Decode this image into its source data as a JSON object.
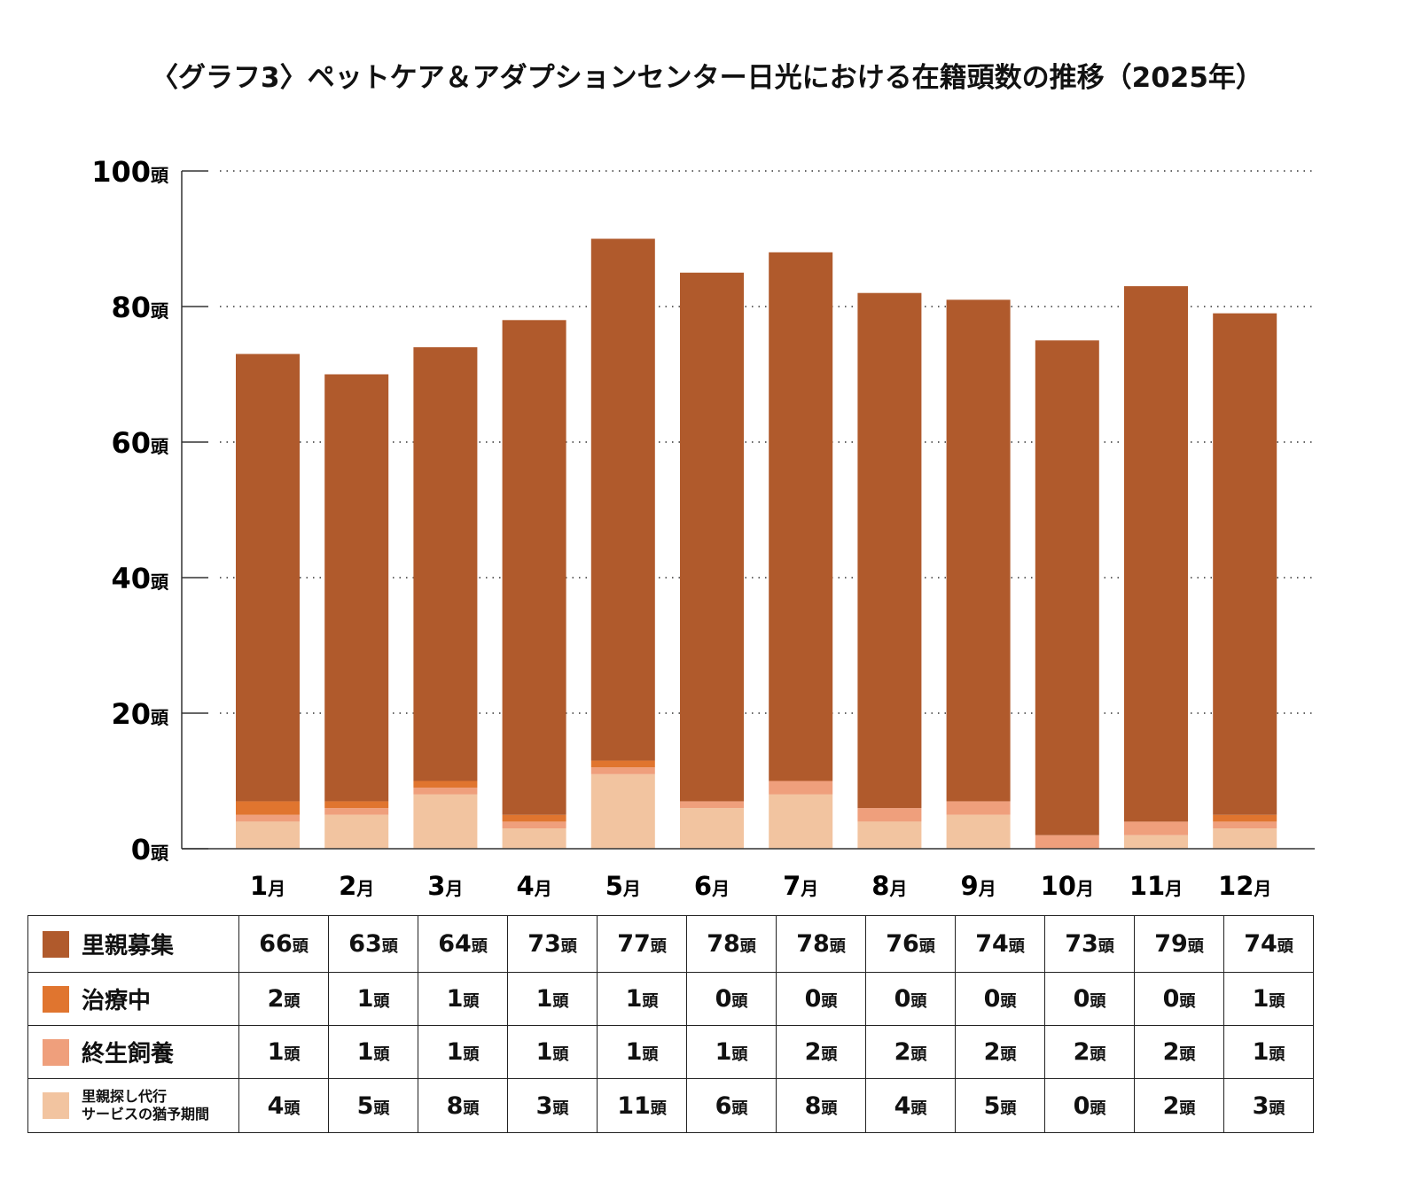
{
  "title": "〈グラフ3〉ペットケア＆アダプションセンター日光における在籍頭数の推移（2025年）",
  "unit": "頭",
  "chart_data": {
    "type": "bar",
    "stacked": true,
    "title": "〈グラフ3〉ペットケア＆アダプションセンター日光における在籍頭数の推移（2025年）",
    "categories": [
      "1月",
      "2月",
      "3月",
      "4月",
      "5月",
      "6月",
      "7月",
      "8月",
      "9月",
      "10月",
      "11月",
      "12月"
    ],
    "ylim": [
      0,
      100
    ],
    "yticks": [
      "0頭",
      "20頭",
      "40頭",
      "60頭",
      "80頭",
      "100頭"
    ],
    "ytick_values": [
      0,
      20,
      40,
      60,
      80,
      100
    ],
    "grid": "dotted horizontal",
    "series": [
      {
        "name": "里親探し代行サービスの猶予期間",
        "name_lines": [
          "里親探し代行",
          "サービスの猶予期間"
        ],
        "color": "#f2c4a0",
        "values": [
          4,
          5,
          8,
          3,
          11,
          6,
          8,
          4,
          5,
          0,
          2,
          3
        ]
      },
      {
        "name": "終生飼養",
        "color": "#ef9f7c",
        "values": [
          1,
          1,
          1,
          1,
          1,
          1,
          2,
          2,
          2,
          2,
          2,
          1
        ]
      },
      {
        "name": "治療中",
        "color": "#e0752f",
        "values": [
          2,
          1,
          1,
          1,
          1,
          0,
          0,
          0,
          0,
          0,
          0,
          1
        ]
      },
      {
        "name": "里親募集",
        "color": "#b05a2c",
        "values": [
          66,
          63,
          64,
          73,
          77,
          78,
          78,
          76,
          74,
          73,
          79,
          74
        ]
      }
    ],
    "table_order": [
      3,
      2,
      1,
      0
    ]
  }
}
